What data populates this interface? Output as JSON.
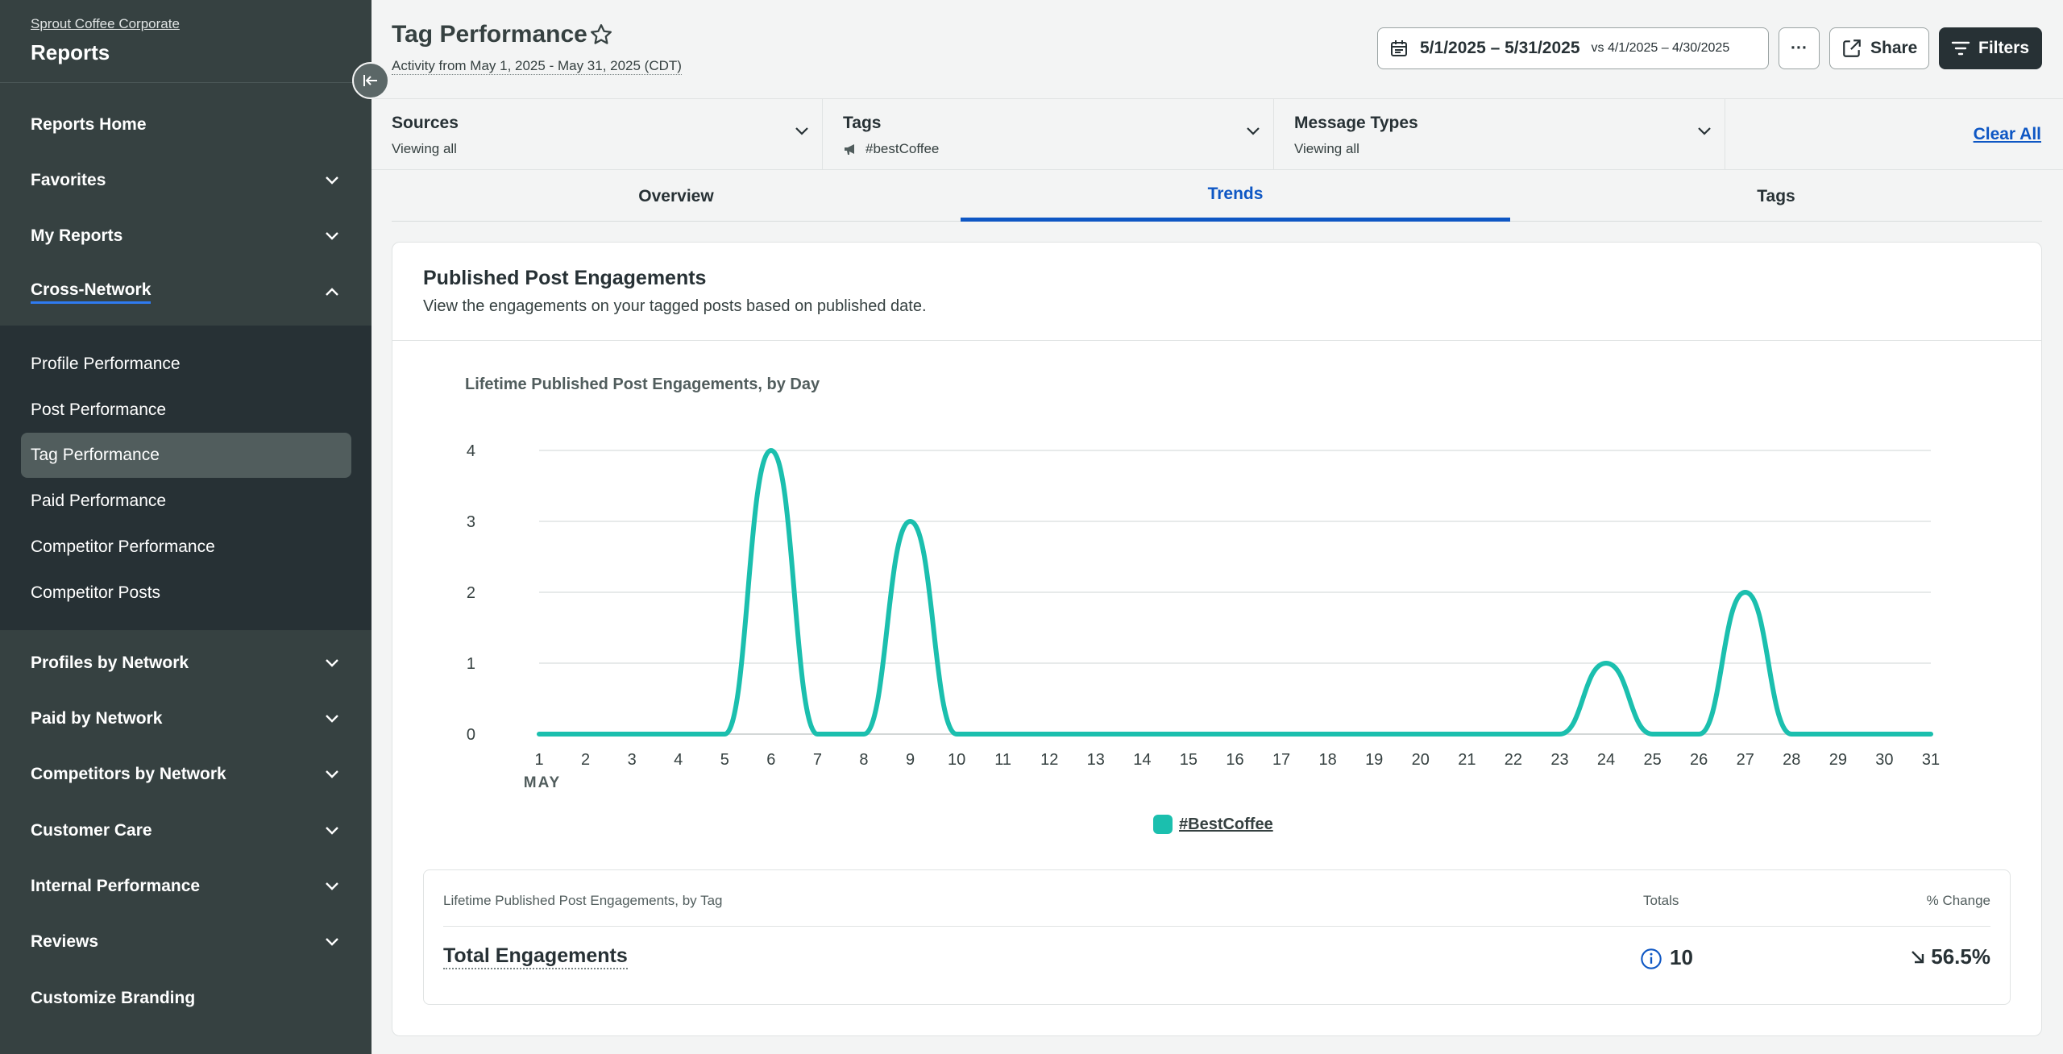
{
  "sidebar": {
    "org": "Sprout Coffee Corporate",
    "title": "Reports",
    "items": [
      {
        "label": "Reports Home"
      },
      {
        "label": "Favorites"
      },
      {
        "label": "My Reports"
      },
      {
        "label": "Cross-Network"
      },
      {
        "label": "Profiles by Network"
      },
      {
        "label": "Paid by Network"
      },
      {
        "label": "Competitors by Network"
      },
      {
        "label": "Customer Care"
      },
      {
        "label": "Internal Performance"
      },
      {
        "label": "Reviews"
      },
      {
        "label": "Customize Branding"
      }
    ],
    "subitems": [
      {
        "label": "Profile Performance"
      },
      {
        "label": "Post Performance"
      },
      {
        "label": "Tag Performance"
      },
      {
        "label": "Paid Performance"
      },
      {
        "label": "Competitor Performance"
      },
      {
        "label": "Competitor Posts"
      }
    ]
  },
  "header": {
    "title": "Tag Performance",
    "subtitle": "Activity from May 1, 2025 - May 31, 2025 (CDT)",
    "date_range": "5/1/2025 – 5/31/2025",
    "compare_range": "vs 4/1/2025 – 4/30/2025",
    "more_label": "···",
    "share_label": "Share",
    "filters_label": "Filters"
  },
  "filters": {
    "sources": {
      "label": "Sources",
      "value": "Viewing all"
    },
    "tags": {
      "label": "Tags",
      "value": "#bestCoffee"
    },
    "message_types": {
      "label": "Message Types",
      "value": "Viewing all"
    },
    "clear_all": "Clear All"
  },
  "tabs": [
    {
      "label": "Overview"
    },
    {
      "label": "Trends"
    },
    {
      "label": "Tags"
    }
  ],
  "card": {
    "title": "Published Post Engagements",
    "description": "View the engagements on your tagged posts based on published date."
  },
  "chart_data": {
    "type": "line",
    "title": "Lifetime Published Post Engagements, by Day",
    "x_month_label": "MAY",
    "x": [
      1,
      2,
      3,
      4,
      5,
      6,
      7,
      8,
      9,
      10,
      11,
      12,
      13,
      14,
      15,
      16,
      17,
      18,
      19,
      20,
      21,
      22,
      23,
      24,
      25,
      26,
      27,
      28,
      29,
      30,
      31
    ],
    "yticks": [
      0,
      1,
      2,
      3,
      4
    ],
    "ylim": [
      0,
      4
    ],
    "series": [
      {
        "name": "#BestCoffee",
        "color": "#1bbfae",
        "values": [
          0,
          0,
          0,
          0,
          0,
          4,
          0,
          0,
          3,
          0,
          0,
          0,
          0,
          0,
          0,
          0,
          0,
          0,
          0,
          0,
          0,
          0,
          0,
          1,
          0,
          0,
          2,
          0,
          0,
          0,
          0
        ]
      }
    ],
    "grid": true,
    "legend_position": "bottom"
  },
  "summary": {
    "header_label": "Lifetime Published Post Engagements, by Tag",
    "totals_header": "Totals",
    "change_header": "% Change",
    "row_label": "Total Engagements",
    "total_value": "10",
    "pct_change": "56.5%",
    "trend_direction": "down"
  }
}
